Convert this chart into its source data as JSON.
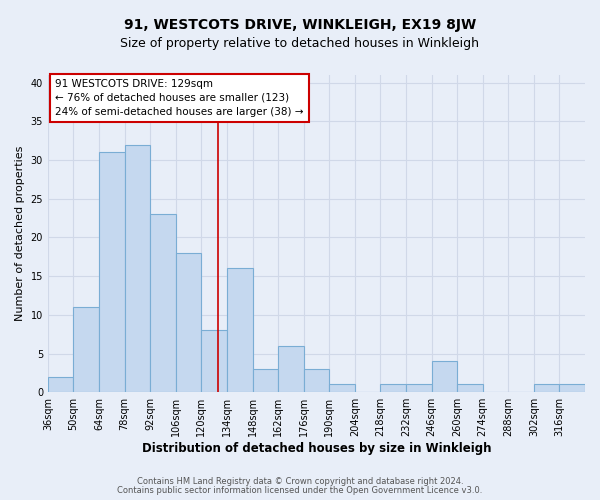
{
  "title": "91, WESTCOTS DRIVE, WINKLEIGH, EX19 8JW",
  "subtitle": "Size of property relative to detached houses in Winkleigh",
  "xlabel": "Distribution of detached houses by size in Winkleigh",
  "ylabel": "Number of detached properties",
  "bin_labels": [
    "36sqm",
    "50sqm",
    "64sqm",
    "78sqm",
    "92sqm",
    "106sqm",
    "120sqm",
    "134sqm",
    "148sqm",
    "162sqm",
    "176sqm",
    "190sqm",
    "204sqm",
    "218sqm",
    "232sqm",
    "246sqm",
    "260sqm",
    "274sqm",
    "288sqm",
    "302sqm",
    "316sqm"
  ],
  "bin_edges": [
    36,
    50,
    64,
    78,
    92,
    106,
    120,
    134,
    148,
    162,
    176,
    190,
    204,
    218,
    232,
    246,
    260,
    274,
    288,
    302,
    316,
    330
  ],
  "bar_heights": [
    2,
    11,
    31,
    32,
    23,
    18,
    8,
    16,
    3,
    6,
    3,
    1,
    0,
    1,
    1,
    4,
    1,
    0,
    0,
    1,
    1
  ],
  "bar_color": "#c5d8ef",
  "bar_edgecolor": "#7aadd4",
  "bar_linewidth": 0.8,
  "vline_x": 129,
  "vline_color": "#cc0000",
  "annotation_line1": "91 WESTCOTS DRIVE: 129sqm",
  "annotation_line2": "← 76% of detached houses are smaller (123)",
  "annotation_line3": "24% of semi-detached houses are larger (38) →",
  "annotation_box_edgecolor": "#cc0000",
  "annotation_box_facecolor": "#ffffff",
  "annotation_fontsize": 7.5,
  "ylim": [
    0,
    41
  ],
  "yticks": [
    0,
    5,
    10,
    15,
    20,
    25,
    30,
    35,
    40
  ],
  "grid_color": "#d0d8e8",
  "bg_color": "#e8eef8",
  "plot_bg_color": "#e8eef8",
  "footer_line1": "Contains HM Land Registry data © Crown copyright and database right 2024.",
  "footer_line2": "Contains public sector information licensed under the Open Government Licence v3.0.",
  "title_fontsize": 10,
  "subtitle_fontsize": 9,
  "xlabel_fontsize": 8.5,
  "ylabel_fontsize": 8,
  "footer_fontsize": 6,
  "tick_fontsize": 7
}
